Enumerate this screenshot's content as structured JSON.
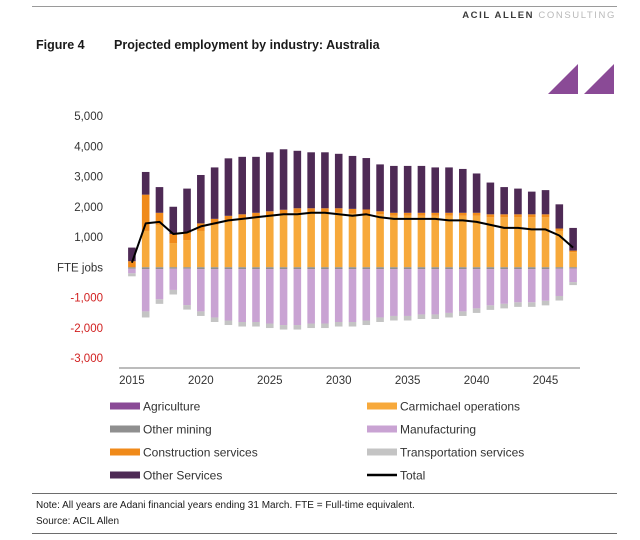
{
  "header": {
    "brand_strong": "ACIL ALLEN",
    "brand_light": "CONSULTING",
    "figure_number": "Figure 4",
    "figure_title": "Projected employment by industry: Australia"
  },
  "footer": {
    "note": "Note: All years are Adani financial years ending 31 March. FTE = Full-time equivalent.",
    "source": "Source: ACIL Allen"
  },
  "colors": {
    "Agriculture": "#8a4a96",
    "Carmichael operations": "#f7a93b",
    "Other mining": "#8f8f8f",
    "Manufacturing": "#c9a3d3",
    "Construction services": "#f08a1a",
    "Transportation services": "#c4c4c4",
    "Other Services": "#4e2a55",
    "Total": "#000000",
    "logo": "#8a4a96"
  },
  "chart_data": {
    "type": "bar",
    "stacked": true,
    "ylabel": "FTE jobs",
    "ylim": [
      -3000,
      5000
    ],
    "yticks": [
      -3000,
      -2000,
      -1000,
      0,
      1000,
      2000,
      3000,
      4000,
      5000
    ],
    "ytick_labels": [
      "-3,000",
      "-2,000",
      "-1,000",
      "FTE jobs",
      "1,000",
      "2,000",
      "3,000",
      "4,000",
      "5,000"
    ],
    "xticks": [
      2015,
      2020,
      2025,
      2030,
      2035,
      2040,
      2045
    ],
    "x": [
      2015,
      2016,
      2017,
      2018,
      2019,
      2020,
      2021,
      2022,
      2023,
      2024,
      2025,
      2026,
      2027,
      2028,
      2029,
      2030,
      2031,
      2032,
      2033,
      2034,
      2035,
      2036,
      2037,
      2038,
      2039,
      2040,
      2041,
      2042,
      2043,
      2044,
      2045,
      2046,
      2047
    ],
    "legend_position": "bottom",
    "series": [
      {
        "name": "Agriculture",
        "kind": "bar",
        "values": [
          0,
          0,
          0,
          0,
          0,
          0,
          0,
          0,
          0,
          0,
          0,
          0,
          0,
          0,
          0,
          0,
          0,
          0,
          0,
          0,
          0,
          0,
          0,
          0,
          0,
          0,
          0,
          0,
          0,
          0,
          0,
          0,
          0
        ]
      },
      {
        "name": "Carmichael operations",
        "kind": "bar",
        "values": [
          0,
          1200,
          1400,
          800,
          900,
          1200,
          1400,
          1500,
          1600,
          1650,
          1700,
          1750,
          1800,
          1800,
          1800,
          1800,
          1780,
          1760,
          1750,
          1700,
          1700,
          1700,
          1700,
          1700,
          1700,
          1700,
          1650,
          1650,
          1650,
          1650,
          1650,
          1200,
          500
        ]
      },
      {
        "name": "Other mining",
        "kind": "bar",
        "values": [
          -50,
          -60,
          -60,
          -50,
          -50,
          -60,
          -60,
          -60,
          -60,
          -60,
          -60,
          -60,
          -60,
          -60,
          -60,
          -60,
          -60,
          -60,
          -60,
          -60,
          -60,
          -60,
          -60,
          -60,
          -60,
          -60,
          -60,
          -60,
          -60,
          -60,
          -60,
          -50,
          -40
        ]
      },
      {
        "name": "Manufacturing",
        "kind": "bar",
        "values": [
          -150,
          -1400,
          -1000,
          -700,
          -1200,
          -1400,
          -1600,
          -1700,
          -1750,
          -1750,
          -1800,
          -1850,
          -1850,
          -1800,
          -1800,
          -1750,
          -1750,
          -1700,
          -1600,
          -1550,
          -1550,
          -1500,
          -1500,
          -1450,
          -1400,
          -1300,
          -1200,
          -1150,
          -1100,
          -1100,
          -1050,
          -900,
          -450
        ]
      },
      {
        "name": "Construction services",
        "kind": "bar",
        "values": [
          200,
          1200,
          400,
          300,
          250,
          250,
          200,
          200,
          150,
          150,
          150,
          150,
          150,
          150,
          150,
          150,
          150,
          150,
          100,
          100,
          100,
          100,
          100,
          100,
          100,
          100,
          100,
          100,
          100,
          100,
          100,
          80,
          50
        ]
      },
      {
        "name": "Transportation services",
        "kind": "bar",
        "values": [
          -100,
          -200,
          -150,
          -150,
          -150,
          -150,
          -150,
          -150,
          -150,
          -150,
          -150,
          -150,
          -150,
          -150,
          -150,
          -150,
          -150,
          -150,
          -150,
          -150,
          -150,
          -150,
          -150,
          -150,
          -150,
          -150,
          -150,
          -150,
          -150,
          -150,
          -150,
          -150,
          -100
        ]
      },
      {
        "name": "Other Services",
        "kind": "bar",
        "values": [
          450,
          750,
          850,
          900,
          1450,
          1600,
          1700,
          1900,
          1900,
          1850,
          1950,
          2000,
          1900,
          1850,
          1850,
          1800,
          1750,
          1700,
          1550,
          1550,
          1550,
          1550,
          1500,
          1500,
          1450,
          1300,
          1050,
          900,
          850,
          750,
          800,
          800,
          750
        ]
      },
      {
        "name": "Total",
        "kind": "line",
        "values": [
          150,
          1450,
          1500,
          1100,
          1150,
          1350,
          1450,
          1550,
          1600,
          1650,
          1700,
          1750,
          1750,
          1800,
          1800,
          1750,
          1700,
          1750,
          1650,
          1600,
          1600,
          1600,
          1600,
          1550,
          1550,
          1500,
          1400,
          1300,
          1300,
          1250,
          1250,
          1050,
          650
        ]
      }
    ]
  }
}
